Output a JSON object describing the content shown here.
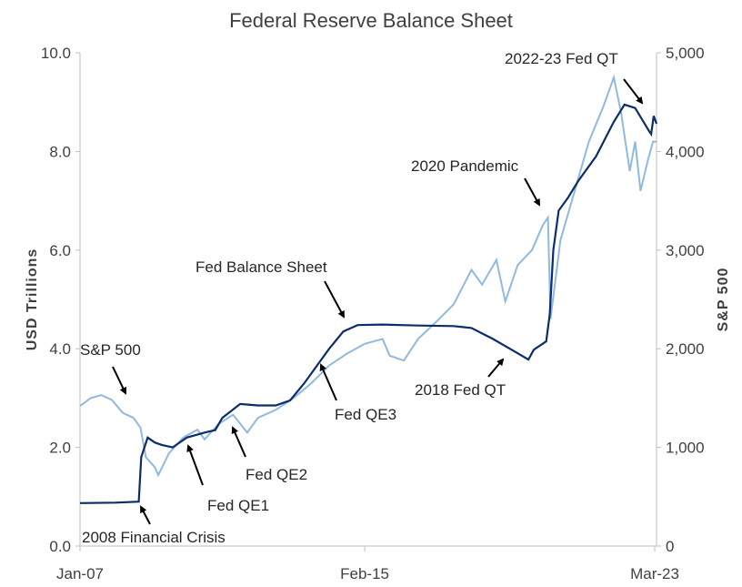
{
  "chart_data": {
    "type": "line",
    "title": "Federal Reserve Balance Sheet",
    "ylabel": "USD Trillions",
    "y2label": "S&P 500",
    "x_ticks": [
      "Jan-07",
      "Feb-15",
      "Mar-23"
    ],
    "x_range": [
      2007.0,
      2023.2
    ],
    "ylim": [
      0,
      10
    ],
    "y_ticks": [
      "0.0",
      "2.0",
      "4.0",
      "6.0",
      "8.0",
      "10.0"
    ],
    "y2lim": [
      0,
      5000
    ],
    "y2_ticks": [
      "0",
      "1,000",
      "2,000",
      "3,000",
      "4,000",
      "5,000"
    ],
    "grid": false,
    "colors": {
      "balance_sheet": "#0c2d6b",
      "sp500": "#8fb9e0",
      "axis": "#bfbfbf",
      "text": "#404040"
    },
    "series": [
      {
        "name": "Fed Balance Sheet",
        "axis": "left",
        "x": [
          2007.0,
          2008.0,
          2008.65,
          2008.72,
          2008.9,
          2009.1,
          2009.3,
          2009.6,
          2010.0,
          2010.5,
          2010.8,
          2011.0,
          2011.5,
          2012.0,
          2012.5,
          2012.9,
          2013.3,
          2013.7,
          2014.0,
          2014.4,
          2014.8,
          2015.5,
          2016.5,
          2017.5,
          2018.0,
          2018.6,
          2019.2,
          2019.6,
          2019.75,
          2020.1,
          2020.2,
          2020.3,
          2020.45,
          2020.7,
          2021.0,
          2021.5,
          2022.0,
          2022.3,
          2022.6,
          2023.0,
          2023.05,
          2023.12,
          2023.2
        ],
        "y": [
          0.87,
          0.88,
          0.9,
          1.8,
          2.2,
          2.1,
          2.05,
          2.0,
          2.2,
          2.3,
          2.35,
          2.6,
          2.88,
          2.85,
          2.85,
          2.95,
          3.3,
          3.7,
          4.0,
          4.35,
          4.48,
          4.49,
          4.47,
          4.46,
          4.42,
          4.2,
          3.95,
          3.78,
          3.98,
          4.15,
          4.7,
          6.0,
          6.8,
          7.05,
          7.4,
          7.9,
          8.6,
          8.95,
          8.88,
          8.4,
          8.35,
          8.72,
          8.56
        ]
      },
      {
        "name": "S&P 500",
        "axis": "right",
        "x": [
          2007.0,
          2007.3,
          2007.6,
          2007.9,
          2008.2,
          2008.5,
          2008.7,
          2008.85,
          2009.1,
          2009.2,
          2009.5,
          2009.9,
          2010.3,
          2010.5,
          2010.9,
          2011.3,
          2011.7,
          2012.0,
          2012.5,
          2013.0,
          2013.5,
          2014.0,
          2014.5,
          2015.0,
          2015.5,
          2015.7,
          2016.1,
          2016.5,
          2017.0,
          2017.5,
          2018.0,
          2018.3,
          2018.7,
          2018.95,
          2019.3,
          2019.7,
          2020.0,
          2020.15,
          2020.22,
          2020.5,
          2020.9,
          2021.3,
          2021.7,
          2022.0,
          2022.2,
          2022.45,
          2022.6,
          2022.75,
          2022.95,
          2023.1,
          2023.2
        ],
        "y": [
          1420,
          1500,
          1530,
          1480,
          1350,
          1300,
          1200,
          900,
          800,
          720,
          940,
          1100,
          1180,
          1080,
          1240,
          1330,
          1150,
          1300,
          1380,
          1500,
          1650,
          1830,
          1950,
          2050,
          2100,
          1930,
          1880,
          2100,
          2270,
          2450,
          2800,
          2650,
          2900,
          2480,
          2850,
          3000,
          3250,
          3330,
          2300,
          3100,
          3600,
          4100,
          4450,
          4750,
          4400,
          3800,
          4100,
          3600,
          3900,
          4100,
          4100
        ]
      }
    ],
    "annotations": [
      "2022-23 Fed QT",
      "2020 Pandemic",
      "Fed Balance Sheet",
      "S&P 500",
      "2018 Fed QT",
      "Fed QE3",
      "Fed QE2",
      "Fed QE1",
      "2008 Financial Crisis"
    ]
  }
}
